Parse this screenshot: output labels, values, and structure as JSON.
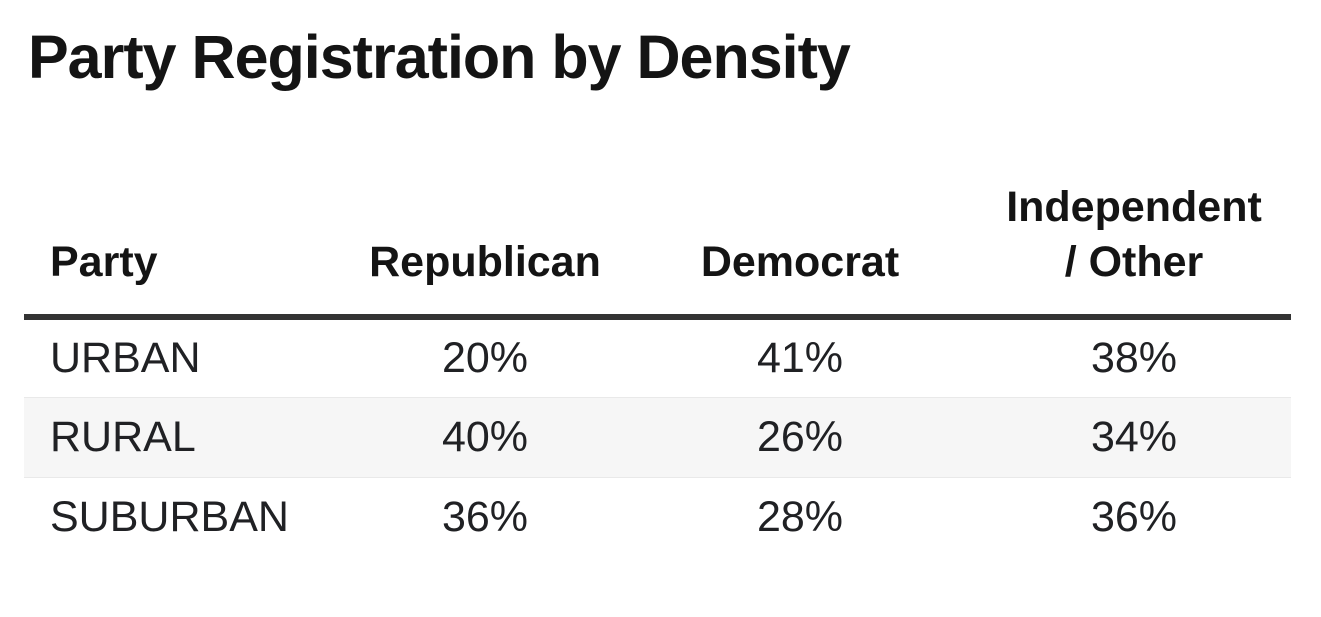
{
  "title": "Party Registration by Density",
  "table": {
    "headers": {
      "party": "Party",
      "republican": "Republican",
      "democrat": "Democrat",
      "independent": "Independent\n/ Other"
    },
    "rows": [
      {
        "party": "URBAN",
        "republican": "20%",
        "democrat": "41%",
        "independent": "38%"
      },
      {
        "party": "RURAL",
        "republican": "40%",
        "democrat": "26%",
        "independent": "34%"
      },
      {
        "party": "SUBURBAN",
        "republican": "36%",
        "democrat": "28%",
        "independent": "36%"
      }
    ]
  },
  "colors": {
    "title_text": "#141414",
    "header_text": "#141414",
    "body_text": "#202124",
    "header_rule": "#333333",
    "stripe_background": "#f6f6f6",
    "stripe_border": "#e9e9e9",
    "page_background": "#ffffff"
  },
  "chart_data": {
    "type": "table",
    "title": "Party Registration by Density",
    "categories": [
      "URBAN",
      "RURAL",
      "SUBURBAN"
    ],
    "series": [
      {
        "name": "Republican",
        "values": [
          20,
          40,
          36
        ]
      },
      {
        "name": "Democrat",
        "values": [
          41,
          26,
          28
        ]
      },
      {
        "name": "Independent / Other",
        "values": [
          38,
          34,
          36
        ]
      }
    ],
    "unit": "%"
  }
}
